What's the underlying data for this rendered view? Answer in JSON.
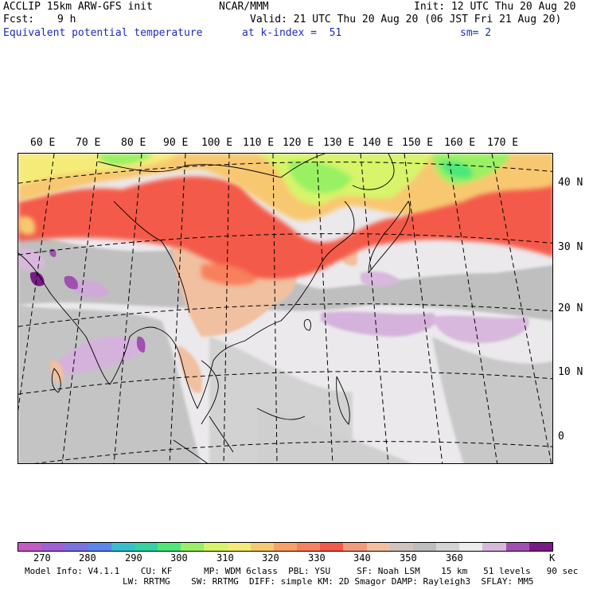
{
  "header": {
    "model": "ACCLIP 15km ARW-GFS init",
    "org": "NCAR/MMM",
    "init": "Init: 12 UTC Thu 20 Aug 20",
    "fcst_label": "Fcst:",
    "fcst_value": "9 h",
    "valid": "Valid: 21 UTC Thu 20 Aug 20 (06 JST Fri 21 Aug 20)",
    "field": "Equivalent potential temperature",
    "level": "at k-index =  51",
    "smooth": "sm= 2"
  },
  "map": {
    "lon_labels": [
      "60 E",
      "70 E",
      "80 E",
      "90 E",
      "100 E",
      "110 E",
      "120 E",
      "130 E",
      "140 E",
      "150 E",
      "160 E",
      "170 E"
    ],
    "lat_labels": [
      "40 N",
      "30 N",
      "20 N",
      "10 N",
      "0"
    ]
  },
  "colorbar": {
    "colors": [
      "#c45ac6",
      "#9e60d2",
      "#7a72e0",
      "#5a86ee",
      "#38bfcf",
      "#33d2a0",
      "#4ee87a",
      "#9af064",
      "#d7f46a",
      "#f5ec78",
      "#f8c870",
      "#f9a066",
      "#f8805c",
      "#f45a4a",
      "#f49a7c",
      "#f0c0a0",
      "#cfc3be",
      "#bdbdbd",
      "#d4d4d4",
      "#ececec",
      "#d8b8dc",
      "#a050b0",
      "#7a1a88"
    ],
    "labels": [
      "270",
      "280",
      "290",
      "300",
      "310",
      "320",
      "330",
      "340",
      "350",
      "360"
    ],
    "unit": "K"
  },
  "footer": {
    "line1": "Model Info: V4.1.1    CU: KF      MP: WDM 6class  PBL: YSU     SF: Noah LSM    15 km   51 levels   90 sec",
    "line2": "LW: RRTMG    SW: RRTMG  DIFF: simple KM: 2D Smagor DAMP: Rayleigh3  SFLAY: MM5"
  }
}
